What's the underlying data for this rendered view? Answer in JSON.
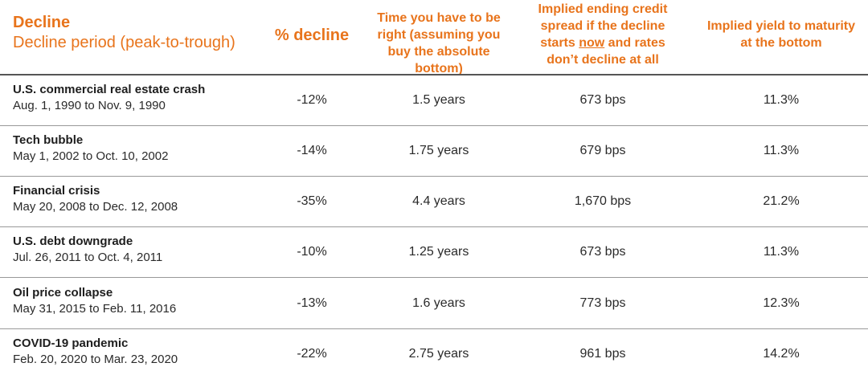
{
  "header": {
    "col1_title": "Decline",
    "col1_subtitle": "Decline period (peak-to-trough)",
    "col2": "% decline",
    "col3": "Time you have to be right (assuming you buy the absolute bottom)",
    "col4_pre": "Implied ending credit spread if the decline starts ",
    "col4_under": "now",
    "col4_post": " and rates don’t decline at all",
    "col5": "Implied yield to maturity at the bottom"
  },
  "rows": [
    {
      "name": "U.S. commercial real estate crash",
      "period": "Aug. 1, 1990 to Nov. 9, 1990",
      "decline": "-12%",
      "time": "1.5 years",
      "spread": "673 bps",
      "yield": "11.3%"
    },
    {
      "name": "Tech bubble",
      "period": "May 1, 2002 to Oct. 10, 2002",
      "decline": "-14%",
      "time": "1.75 years",
      "spread": "679 bps",
      "yield": "11.3%"
    },
    {
      "name": "Financial crisis",
      "period": "May 20, 2008 to Dec. 12, 2008",
      "decline": "-35%",
      "time": "4.4 years",
      "spread": "1,670 bps",
      "yield": "21.2%"
    },
    {
      "name": "U.S. debt downgrade",
      "period": "Jul. 26, 2011 to Oct. 4, 2011",
      "decline": "-10%",
      "time": "1.25 years",
      "spread": "673 bps",
      "yield": "11.3%"
    },
    {
      "name": "Oil price collapse",
      "period": "May 31, 2015 to Feb. 11, 2016",
      "decline": "-13%",
      "time": "1.6 years",
      "spread": "773 bps",
      "yield": "12.3%"
    },
    {
      "name": "COVID-19 pandemic",
      "period": "Feb. 20, 2020 to Mar. 23, 2020",
      "decline": "-22%",
      "time": "2.75 years",
      "spread": "961 bps",
      "yield": "14.2%"
    }
  ],
  "colors": {
    "header": "#e8741c",
    "text": "#222222",
    "rule": "#555555"
  }
}
